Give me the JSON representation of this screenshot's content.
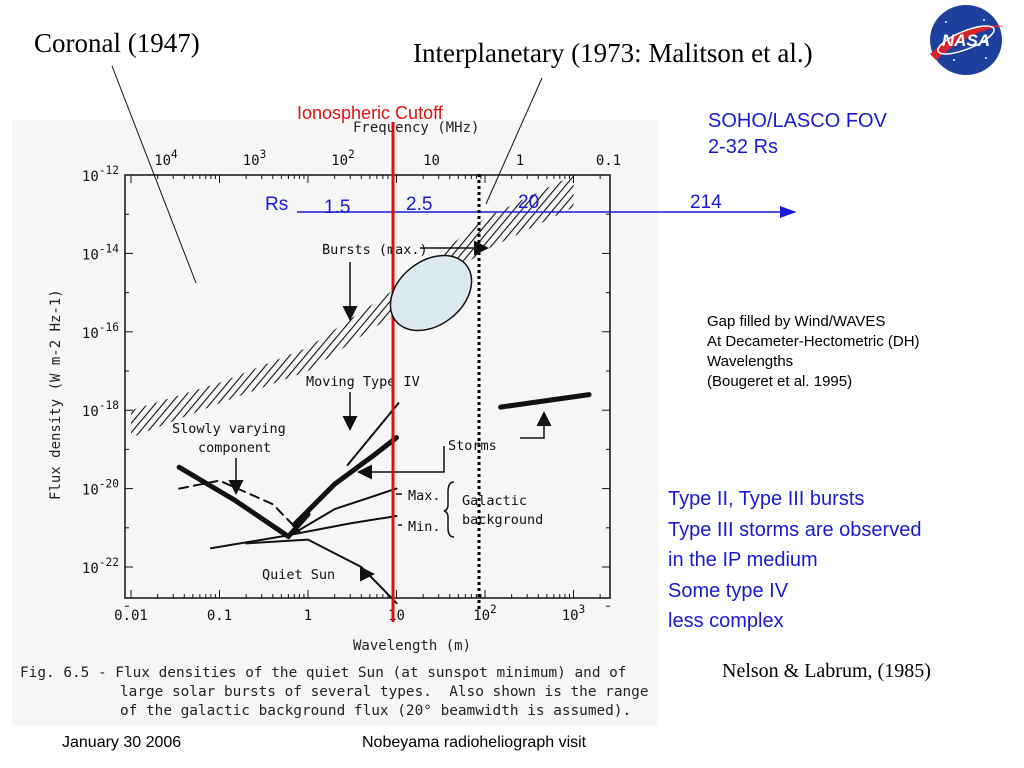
{
  "slide": {
    "title_left": "Coronal (1947)",
    "title_right": "Interplanetary (1973: Malitson et al.)",
    "nasa_logo_text": "NASA",
    "ionospheric_label": "Ionospheric Cutoff",
    "soho_lines": [
      "SOHO/LASCO FOV",
      "2-32 Rs"
    ],
    "rs_label": "Rs",
    "rs_marks": [
      "1.5",
      "2.5",
      "20",
      "214"
    ],
    "gap_lines": [
      "Gap filled by Wind/WAVES",
      "At Decameter-Hectometric (DH)",
      "Wavelengths",
      "(Bougeret et al. 1995)"
    ],
    "types_lines": [
      "Type II, Type III bursts",
      "Type III storms are observed",
      "in the IP medium",
      "Some type IV",
      "less complex"
    ],
    "citation": "Nelson & Labrum, (1985)",
    "footer_date": "January 30 2006",
    "footer_visit": "Nobeyama radioheliograph visit",
    "colors": {
      "accent_red": "#e01010",
      "accent_blue": "#1a1ad6",
      "ellipse_fill": "#dce9f0"
    }
  },
  "chart_data": {
    "type": "line",
    "xlabel": "Wavelength (m)",
    "top_axis_label": "Frequency (MHz)",
    "ylabel": "Flux density (W m-2 Hz-1)",
    "x_scale": "log",
    "y_scale": "log",
    "xlim": [
      0.01,
      2000
    ],
    "ylim": [
      1e-23,
      1e-12
    ],
    "x_ticks": [
      "0.01",
      "0.1",
      "1",
      "10",
      "10^2",
      "10^3"
    ],
    "top_ticks": [
      "10^4",
      "10^3",
      "10^2",
      "10",
      "1",
      "0.1"
    ],
    "y_ticks": [
      "10^-12",
      "10^-14",
      "10^-16",
      "10^-18",
      "10^-20",
      "10^-22"
    ],
    "annotations": [
      "Bursts (max.)",
      "Moving Type IV",
      "Slowly varying component",
      "Storms",
      "Max.",
      "Min.",
      "Galactic background",
      "Quiet Sun"
    ],
    "caption_lines": [
      "Fig. 6.5 - Flux densities of the quiet Sun (at sunspot minimum) and of",
      "large solar bursts of several types.  Also shown is the range",
      "of the galactic background flux (20° beamwidth is assumed)."
    ],
    "series": [
      {
        "name": "Bursts (max.)",
        "style": "hatched_band",
        "x": [
          0.01,
          0.1,
          1,
          10,
          100,
          1000
        ],
        "y_low": [
          2e-19,
          1.5e-18,
          1e-17,
          3e-16,
          1.2e-14,
          1.5e-13
        ],
        "y_high": [
          1e-18,
          5e-18,
          4e-17,
          1.3e-15,
          8e-14,
          1e-12
        ]
      },
      {
        "name": "Moving Type IV (thin)",
        "style": "line",
        "x": [
          2.8,
          10.5
        ],
        "y": [
          4e-20,
          1.5e-18
        ]
      },
      {
        "name": "Moving Type IV (thick)",
        "style": "thick_line",
        "x": [
          0.7,
          2,
          5.5,
          10
        ],
        "y": [
          1.2e-21,
          1.3e-20,
          7e-20,
          2e-19
        ]
      },
      {
        "name": "Slowly varying component",
        "style": "thick_line",
        "x": [
          0.035,
          0.15,
          0.6,
          1
        ],
        "y": [
          3.5e-20,
          5e-21,
          6e-22,
          2.2e-21
        ]
      },
      {
        "name": "Slowly varying (dashed)",
        "style": "dashed",
        "x": [
          0.035,
          0.1,
          0.4,
          0.8
        ],
        "y": [
          1e-20,
          1.6e-20,
          4e-21,
          8e-22
        ]
      },
      {
        "name": "Galactic background max",
        "style": "line",
        "x": [
          0.6,
          2,
          10
        ],
        "y": [
          6e-22,
          3e-21,
          1e-20
        ]
      },
      {
        "name": "Galactic background min",
        "style": "line",
        "x": [
          0.08,
          0.5,
          3,
          10
        ],
        "y": [
          3e-22,
          6e-22,
          1.3e-21,
          2e-21
        ]
      },
      {
        "name": "Quiet Sun",
        "style": "line",
        "x": [
          0.2,
          1,
          4,
          10
        ],
        "y": [
          4e-22,
          5e-22,
          1e-22,
          1.2e-23
        ]
      },
      {
        "name": "Storms",
        "style": "thick_line",
        "x": [
          150,
          1500
        ],
        "y": [
          1.2e-18,
          2.5e-18
        ]
      }
    ]
  }
}
